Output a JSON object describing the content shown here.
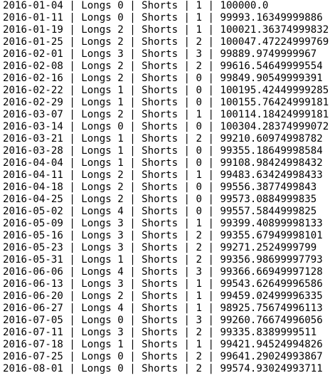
{
  "console": {
    "lines": [
      "2016-01-04 | Longs 0 | Shorts | 1 | 100000.0",
      "2016-01-11 | Longs 0 | Shorts | 1 | 99993.16349999886",
      "2016-01-19 | Longs 2 | Shorts | 1 | 100021.36374999832",
      "2016-01-25 | Longs 2 | Shorts | 2 | 100047.47224999769",
      "2016-02-01 | Longs 3 | Shorts | 3 | 99889.9749999967",
      "2016-02-08 | Longs 2 | Shorts | 2 | 99616.54649999554",
      "2016-02-16 | Longs 2 | Shorts | 0 | 99849.90549999391",
      "2016-02-22 | Longs 1 | Shorts | 0 | 100195.42449999285",
      "2016-02-29 | Longs 1 | Shorts | 0 | 100155.76424999181",
      "2016-03-07 | Longs 2 | Shorts | 1 | 100114.18424999181",
      "2016-03-14 | Longs 0 | Shorts | 0 | 100304.28374999072",
      "2016-03-21 | Longs 1 | Shorts | 2 | 99210.60974998782",
      "2016-03-28 | Longs 1 | Shorts | 0 | 99355.18649998584",
      "2016-04-04 | Longs 1 | Shorts | 0 | 99108.98424998432",
      "2016-04-11 | Longs 2 | Shorts | 1 | 99483.63424998433",
      "2016-04-18 | Longs 2 | Shorts | 0 | 99556.3877499843",
      "2016-04-25 | Longs 2 | Shorts | 0 | 99573.0884999835",
      "2016-05-02 | Longs 4 | Shorts | 0 | 99557.5844999825",
      "2016-05-09 | Longs 3 | Shorts | 1 | 99399.40899998133",
      "2016-05-16 | Longs 3 | Shorts | 2 | 99355.67949998101",
      "2016-05-23 | Longs 3 | Shorts | 2 | 99271.2524999799",
      "2016-05-31 | Longs 1 | Shorts | 2 | 99356.98699997793",
      "2016-06-06 | Longs 4 | Shorts | 3 | 99366.66949997128",
      "2016-06-13 | Longs 3 | Shorts | 1 | 99543.62649996586",
      "2016-06-20 | Longs 2 | Shorts | 1 | 99459.02499996335",
      "2016-06-27 | Longs 4 | Shorts | 1 | 98925.75674996113",
      "2016-07-05 | Longs 0 | Shorts | 3 | 99260.76674996056",
      "2016-07-11 | Longs 3 | Shorts | 2 | 99335.8389999511",
      "2016-07-18 | Longs 1 | Shorts | 1 | 99421.94524994826",
      "2016-07-25 | Longs 0 | Shorts | 2 | 99641.29024993867",
      "2016-08-01 | Longs 0 | Shorts | 2 | 99574.93024993711"
    ]
  }
}
